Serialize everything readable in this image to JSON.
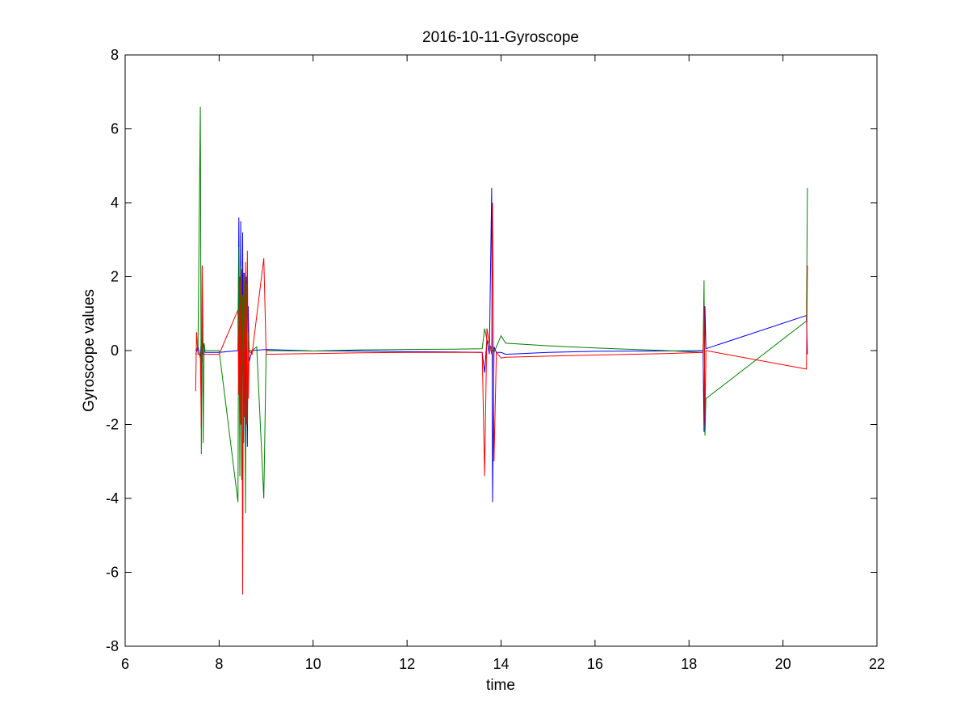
{
  "chart_data": {
    "type": "line",
    "title": "2016-10-11-Gyroscope",
    "xlabel": "time",
    "ylabel": "Gyroscope values",
    "xlim": [
      6,
      22
    ],
    "ylim": [
      -8,
      8
    ],
    "xticks": [
      6,
      8,
      10,
      12,
      14,
      16,
      18,
      20,
      22
    ],
    "yticks": [
      -8,
      -6,
      -4,
      -2,
      0,
      2,
      4,
      6,
      8
    ],
    "xtick_labels": [
      "6",
      "8",
      "10",
      "12",
      "14",
      "16",
      "18",
      "20",
      "22"
    ],
    "ytick_labels": [
      "-8",
      "-6",
      "-4",
      "-2",
      "0",
      "2",
      "4",
      "6",
      "8"
    ],
    "grid": false,
    "legend": "none",
    "series": [
      {
        "color": "#0000ff",
        "x": [
          7.5,
          7.55,
          7.6,
          7.62,
          7.64,
          7.66,
          7.7,
          8.0,
          8.4,
          8.42,
          8.44,
          8.46,
          8.48,
          8.5,
          8.52,
          8.54,
          8.56,
          8.58,
          8.6,
          8.62,
          8.64,
          8.7,
          9.0,
          10.0,
          11.0,
          12.0,
          13.0,
          13.6,
          13.65,
          13.7,
          13.75,
          13.8,
          13.82,
          13.85,
          13.9,
          14.0,
          14.1,
          15.0,
          16.0,
          17.5,
          18.3,
          18.32,
          18.34,
          18.36,
          20.5,
          20.52
        ],
        "y": [
          -0.1,
          0.1,
          -0.2,
          0.3,
          -0.3,
          0.2,
          -0.05,
          -0.05,
          0.0,
          3.6,
          -2.0,
          3.5,
          -1.6,
          3.2,
          -2.5,
          2.1,
          -1.5,
          2.0,
          -2.6,
          1.2,
          -0.3,
          0.0,
          0.03,
          -0.01,
          -0.01,
          -0.03,
          -0.04,
          -0.05,
          -0.6,
          0.3,
          -0.1,
          4.4,
          -4.1,
          0.1,
          -0.05,
          -0.05,
          -0.1,
          -0.05,
          -0.02,
          -0.01,
          0.0,
          -2.2,
          1.2,
          0.05,
          0.95,
          -0.1
        ]
      },
      {
        "color": "#008000",
        "x": [
          7.5,
          7.55,
          7.6,
          7.62,
          7.64,
          7.66,
          7.68,
          7.7,
          8.0,
          8.4,
          8.42,
          8.44,
          8.46,
          8.48,
          8.5,
          8.52,
          8.54,
          8.56,
          8.58,
          8.6,
          8.62,
          8.64,
          8.7,
          8.8,
          8.95,
          9.0,
          10.0,
          11.0,
          12.0,
          13.0,
          13.6,
          13.65,
          13.7,
          13.8,
          13.85,
          13.9,
          14.0,
          14.1,
          15.0,
          16.0,
          17.5,
          18.3,
          18.32,
          18.34,
          18.36,
          20.5,
          20.52
        ],
        "y": [
          0.0,
          0.1,
          6.6,
          -2.8,
          2.3,
          -2.5,
          0.2,
          0.0,
          0.0,
          -4.1,
          2.8,
          -3.4,
          2.3,
          -3.5,
          1.5,
          -2.5,
          2.0,
          -4.4,
          1.8,
          -2.0,
          0.5,
          0.0,
          0.0,
          0.1,
          -4.0,
          0.0,
          -0.01,
          0.02,
          0.03,
          0.04,
          0.05,
          0.6,
          0.3,
          0.05,
          -0.05,
          0.1,
          0.4,
          0.2,
          0.13,
          0.07,
          0.0,
          -0.05,
          1.9,
          -2.3,
          -1.3,
          0.8,
          4.4
        ]
      },
      {
        "color": "#ff0000",
        "x": [
          7.5,
          7.52,
          7.55,
          7.6,
          7.62,
          7.64,
          7.66,
          7.7,
          8.0,
          8.4,
          8.42,
          8.44,
          8.46,
          8.48,
          8.5,
          8.52,
          8.54,
          8.56,
          8.58,
          8.6,
          8.62,
          8.64,
          8.7,
          8.95,
          9.0,
          10.0,
          11.0,
          12.0,
          13.0,
          13.6,
          13.65,
          13.7,
          13.75,
          13.8,
          13.82,
          13.85,
          13.9,
          14.0,
          14.1,
          15.0,
          16.0,
          17.5,
          18.3,
          18.32,
          18.34,
          18.36,
          20.5,
          20.52
        ],
        "y": [
          -1.1,
          0.5,
          -0.1,
          -0.1,
          -2.1,
          2.3,
          -0.1,
          -0.1,
          -0.1,
          1.1,
          -1.2,
          2.0,
          -2.0,
          2.2,
          -6.6,
          2.1,
          -1.8,
          2.4,
          -2.0,
          2.7,
          -1.3,
          0.0,
          -0.1,
          2.5,
          -0.1,
          -0.08,
          -0.06,
          -0.05,
          -0.05,
          -0.05,
          -3.4,
          0.6,
          0.2,
          -0.1,
          4.0,
          -3.0,
          -0.05,
          -0.2,
          -0.18,
          -0.15,
          -0.12,
          -0.08,
          -0.05,
          1.2,
          -2.0,
          0.0,
          -0.5,
          2.3
        ]
      }
    ]
  }
}
